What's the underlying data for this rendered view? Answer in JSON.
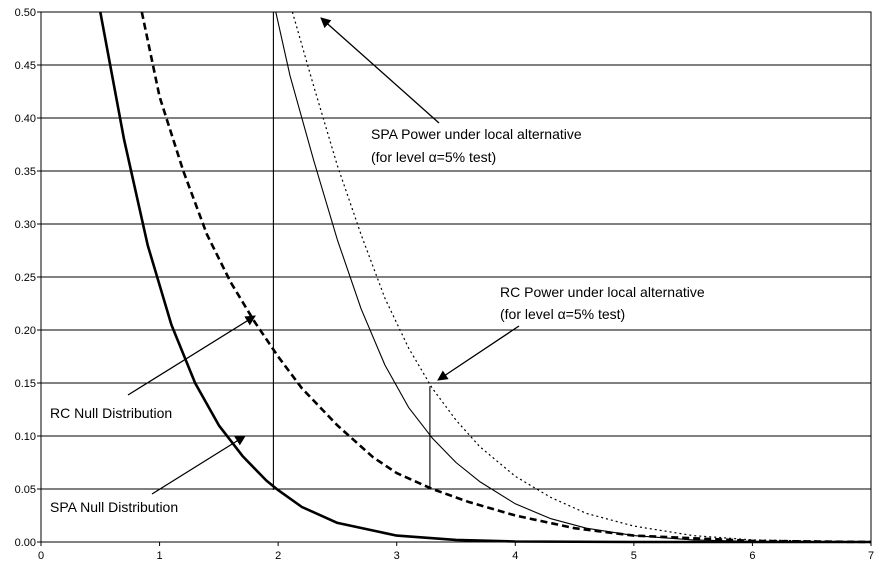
{
  "chart_data": {
    "type": "line",
    "xlim": [
      0,
      7
    ],
    "ylim": [
      0,
      0.5
    ],
    "x_ticks": [
      "0",
      "1",
      "2",
      "3",
      "4",
      "5",
      "6",
      "7"
    ],
    "y_ticks": [
      "0.00",
      "0.05",
      "0.10",
      "0.15",
      "0.20",
      "0.25",
      "0.30",
      "0.35",
      "0.40",
      "0.45",
      "0.50"
    ],
    "grid": "horizontal",
    "series": [
      {
        "name": "SPA Null Distribution",
        "style": "thick-solid",
        "x": [
          0.5,
          0.7,
          0.9,
          1.1,
          1.3,
          1.5,
          1.7,
          1.9,
          2.0,
          2.2,
          2.5,
          3.0,
          3.5,
          4.0,
          5.0,
          7.0
        ],
        "y": [
          0.515,
          0.38,
          0.28,
          0.205,
          0.15,
          0.11,
          0.081,
          0.058,
          0.049,
          0.033,
          0.018,
          0.006,
          0.002,
          0.0005,
          0.0,
          0.0
        ]
      },
      {
        "name": "RC Null Distribution",
        "style": "thick-dashed",
        "x": [
          0.85,
          1.0,
          1.2,
          1.4,
          1.6,
          1.8,
          2.0,
          2.2,
          2.5,
          2.8,
          3.0,
          3.3,
          3.6,
          4.0,
          4.5,
          5.0,
          6.0,
          7.0
        ],
        "y": [
          0.5,
          0.42,
          0.35,
          0.29,
          0.245,
          0.208,
          0.175,
          0.145,
          0.11,
          0.08,
          0.065,
          0.05,
          0.038,
          0.025,
          0.013,
          0.006,
          0.001,
          0.0
        ]
      },
      {
        "name": "SPA Power under local alternative",
        "style": "thin-solid",
        "x": [
          1.98,
          2.1,
          2.3,
          2.5,
          2.7,
          2.9,
          3.1,
          3.3,
          3.5,
          3.7,
          4.0,
          4.3,
          4.6,
          5.0,
          5.5,
          6.0,
          7.0
        ],
        "y": [
          0.5,
          0.44,
          0.36,
          0.285,
          0.22,
          0.167,
          0.127,
          0.098,
          0.075,
          0.057,
          0.036,
          0.022,
          0.013,
          0.006,
          0.002,
          0.0006,
          0.0
        ]
      },
      {
        "name": "RC Power under local alternative",
        "style": "thin-dotted",
        "x": [
          2.12,
          2.3,
          2.5,
          2.7,
          2.9,
          3.1,
          3.3,
          3.5,
          3.7,
          4.0,
          4.3,
          4.6,
          5.0,
          5.5,
          6.0,
          7.0
        ],
        "y": [
          0.5,
          0.43,
          0.355,
          0.29,
          0.23,
          0.183,
          0.145,
          0.115,
          0.09,
          0.062,
          0.042,
          0.027,
          0.015,
          0.006,
          0.002,
          0.0
        ]
      }
    ],
    "vertical_lines": [
      {
        "x": 1.96,
        "y0": 0.049,
        "y1": 0.5
      },
      {
        "x": 3.28,
        "y0": 0.05,
        "y1": 0.147
      }
    ],
    "annotations": [
      {
        "lines": [
          "SPA Power under local alternative",
          "(for level α=5% test)"
        ],
        "anchor": "text-right-top"
      },
      {
        "lines": [
          "RC Power under local alternative",
          "(for level α=5% test)"
        ],
        "anchor": "text-right-mid"
      },
      {
        "lines": [
          "RC Null Distribution"
        ],
        "anchor": "text-left-mid"
      },
      {
        "lines": [
          "SPA Null Distribution"
        ],
        "anchor": "text-left-bottom"
      }
    ]
  }
}
